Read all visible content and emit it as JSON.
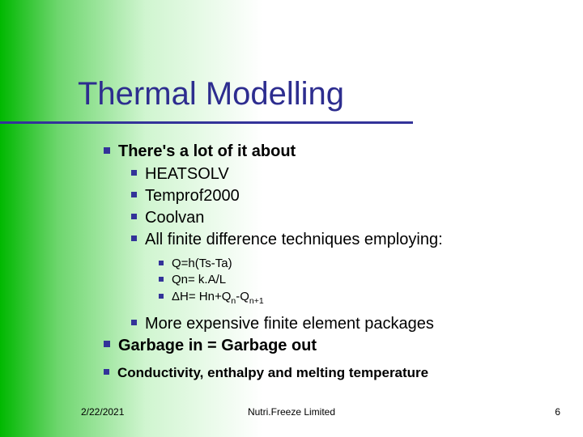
{
  "slide": {
    "title": "Thermal Modelling",
    "b1": "There's a lot of it about",
    "b1a": "HEATSOLV",
    "b1b": "Temprof2000",
    "b1c": "Coolvan",
    "b1d": "All finite difference techniques employing:",
    "eq1": "Q=h(Ts-Ta)",
    "eq2_pre": "Qn= k.A/L",
    "eq3_a": "ΔH= Hn+Q",
    "eq3_sub1": "n",
    "eq3_b": "-Q",
    "eq3_sub2": "n+1",
    "b1e": "More expensive finite element packages",
    "b2": "Garbage in = Garbage out",
    "b3": "Conductivity, enthalpy and melting temperature"
  },
  "footer": {
    "date": "2/22/2021",
    "org": "Nutri.Freeze Limited",
    "page": "6"
  },
  "style": {
    "accent": "#333399",
    "title_fontsize": 40,
    "body_fontsize": 20,
    "sub_fontsize": 15,
    "footer_fontsize": 12
  }
}
